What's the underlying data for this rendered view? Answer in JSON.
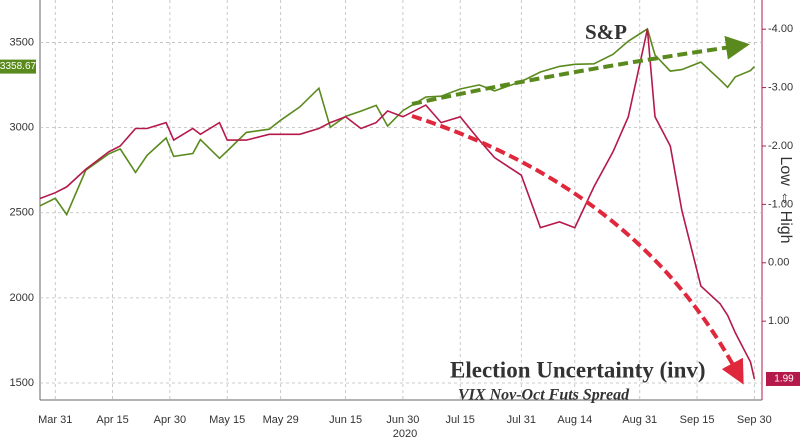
{
  "chart_data": {
    "type": "line",
    "x": [
      "2020-03-27",
      "2020-03-31",
      "2020-04-03",
      "2020-04-08",
      "2020-04-14",
      "2020-04-17",
      "2020-04-21",
      "2020-04-24",
      "2020-04-29",
      "2020-05-01",
      "2020-05-06",
      "2020-05-08",
      "2020-05-13",
      "2020-05-15",
      "2020-05-20",
      "2020-05-26",
      "2020-05-29",
      "2020-06-03",
      "2020-06-08",
      "2020-06-11",
      "2020-06-15",
      "2020-06-19",
      "2020-06-23",
      "2020-06-26",
      "2020-06-30",
      "2020-07-06",
      "2020-07-10",
      "2020-07-15",
      "2020-07-20",
      "2020-07-24",
      "2020-07-31",
      "2020-08-05",
      "2020-08-10",
      "2020-08-14",
      "2020-08-19",
      "2020-08-24",
      "2020-08-28",
      "2020-09-02",
      "2020-09-04",
      "2020-09-08",
      "2020-09-11",
      "2020-09-16",
      "2020-09-21",
      "2020-09-23",
      "2020-09-25",
      "2020-09-29",
      "2020-09-30"
    ],
    "series": [
      {
        "name": "S&P",
        "color": "#5a8a1e",
        "values": [
          2541,
          2585,
          2489,
          2750,
          2846,
          2875,
          2737,
          2837,
          2939,
          2831,
          2848,
          2930,
          2820,
          2863,
          2972,
          2991,
          3044,
          3122,
          3232,
          3002,
          3066,
          3097,
          3131,
          3009,
          3100,
          3180,
          3185,
          3227,
          3251,
          3216,
          3271,
          3327,
          3360,
          3372,
          3375,
          3431,
          3508,
          3580,
          3427,
          3332,
          3341,
          3385,
          3281,
          3237,
          3298,
          3335,
          3358.67
        ]
      },
      {
        "name": "Election Uncertainty (inv)",
        "color": "#b5194a",
        "axis": "y2",
        "values": [
          -1.1,
          -1.2,
          -1.3,
          -1.6,
          -1.9,
          -2.0,
          -2.3,
          -2.3,
          -2.4,
          -2.1,
          -2.3,
          -2.2,
          -2.4,
          -2.1,
          -2.1,
          -2.2,
          -2.2,
          -2.2,
          -2.3,
          -2.4,
          -2.5,
          -2.3,
          -2.4,
          -2.6,
          -2.5,
          -2.7,
          -2.4,
          -2.5,
          -2.1,
          -1.8,
          -1.5,
          -0.6,
          -0.7,
          -0.6,
          -1.3,
          -1.9,
          -2.5,
          -4.0,
          -2.5,
          -2.0,
          -0.9,
          0.4,
          0.7,
          0.9,
          1.2,
          1.7,
          1.99
        ]
      }
    ],
    "annotation": "VIX Nov-Oct Futs Spread",
    "x_year_label": "2020",
    "y2label": "Low ⇔ High",
    "xlim": [
      "2020-03-27",
      "2020-10-02"
    ],
    "xticks": [
      {
        "value": "2020-03-31",
        "label": "Mar 31"
      },
      {
        "value": "2020-04-15",
        "label": "Apr 15"
      },
      {
        "value": "2020-04-30",
        "label": "Apr 30"
      },
      {
        "value": "2020-05-15",
        "label": "May 15"
      },
      {
        "value": "2020-05-29",
        "label": "May 29"
      },
      {
        "value": "2020-06-15",
        "label": "Jun 15"
      },
      {
        "value": "2020-06-30",
        "label": "Jun 30"
      },
      {
        "value": "2020-07-15",
        "label": "Jul 15"
      },
      {
        "value": "2020-07-31",
        "label": "Jul 31"
      },
      {
        "value": "2020-08-14",
        "label": "Aug 14"
      },
      {
        "value": "2020-08-31",
        "label": "Aug 31"
      },
      {
        "value": "2020-09-15",
        "label": "Sep 15"
      },
      {
        "value": "2020-09-30",
        "label": "Sep 30"
      }
    ],
    "ylim": [
      1400,
      3750
    ],
    "yticks": [
      1500,
      2000,
      2500,
      3000,
      3500
    ],
    "y2lim": [
      2.35,
      -4.5
    ],
    "y2ticks": [
      {
        "value": -4,
        "label": "-4.00"
      },
      {
        "value": -3,
        "label": "-3.00"
      },
      {
        "value": -2,
        "label": "-2.00"
      },
      {
        "value": -1,
        "label": "-1.00"
      },
      {
        "value": 0,
        "label": "0.00"
      },
      {
        "value": 1,
        "label": "1.00"
      }
    ],
    "grid": true
  }
}
